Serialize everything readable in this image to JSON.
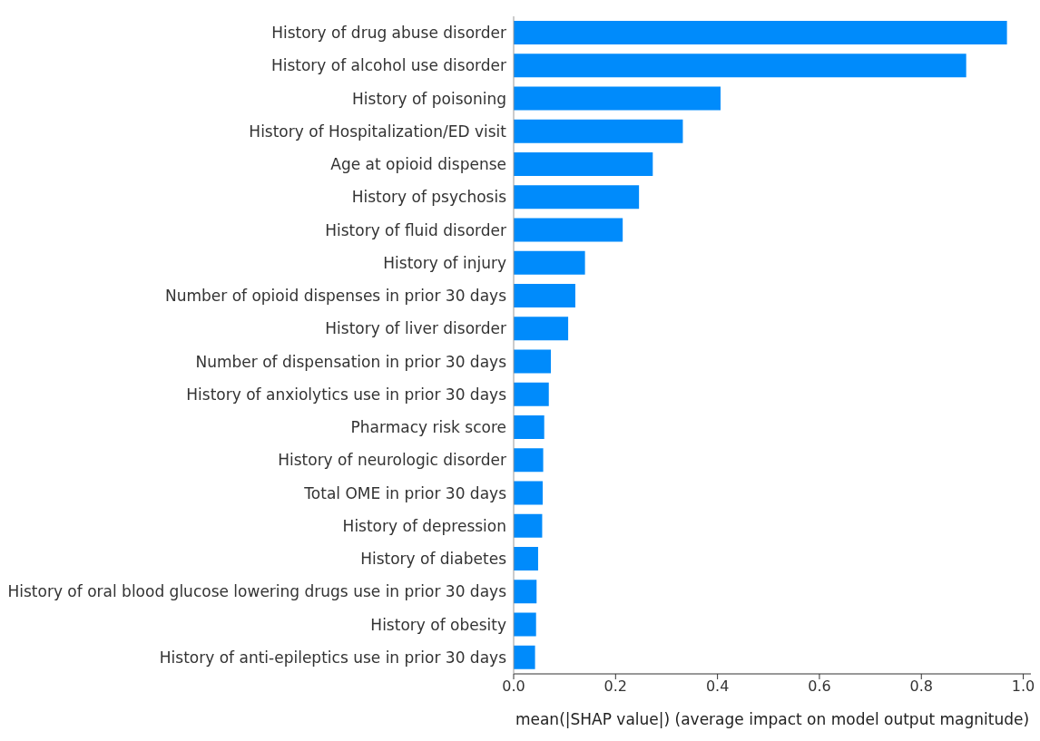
{
  "chart_data": {
    "type": "bar",
    "orientation": "horizontal",
    "xlabel": "mean(|SHAP value|) (average impact on model output magnitude)",
    "categories": [
      "History of drug abuse disorder",
      "History of alcohol use disorder",
      "History of poisoning",
      "History of Hospitalization/ED visit",
      "Age at opioid dispense",
      "History of psychosis",
      "History of fluid disorder",
      "History of injury",
      "Number of opioid dispenses in prior 30 days",
      "History of liver disorder",
      "Number of dispensation in prior 30 days",
      "History of anxiolytics use in prior 30 days",
      "Pharmacy risk score",
      "History of neurologic disorder",
      "Total OME in prior 30 days",
      "History of depression",
      "History of diabetes",
      "History of oral blood glucose lowering drugs use in prior 30 days",
      "History of obesity",
      "History of anti-epileptics use in prior 30 days"
    ],
    "values": [
      0.968,
      0.888,
      0.406,
      0.332,
      0.273,
      0.246,
      0.214,
      0.14,
      0.121,
      0.107,
      0.073,
      0.069,
      0.06,
      0.058,
      0.057,
      0.056,
      0.048,
      0.045,
      0.044,
      0.042
    ],
    "color": "#008bfb",
    "xlim": [
      0,
      1.015
    ],
    "xticks": [
      {
        "value": 0,
        "label": "0.0"
      },
      0.2,
      0.4,
      0.6,
      0.8,
      {
        "value": 1,
        "label": "1.0"
      }
    ],
    "grid": false
  }
}
